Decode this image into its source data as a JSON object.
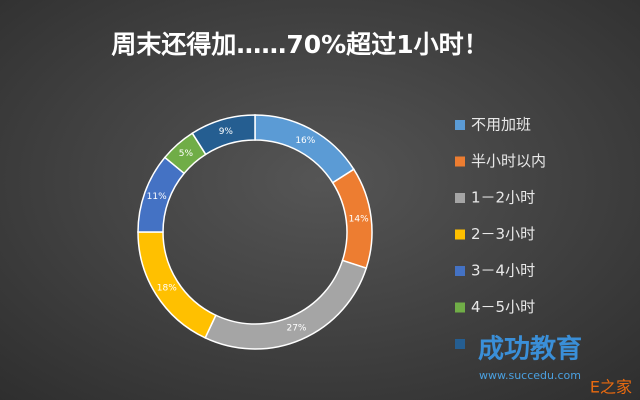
{
  "chart_data": {
    "type": "pie",
    "donut": true,
    "title": "周末还得加……70%超过1小时！",
    "categories": [
      "不用加班",
      "半小时以内",
      "1－2小时",
      "2－3小时",
      "3－4小时",
      "4－5小时",
      null
    ],
    "values": [
      16,
      14,
      27,
      18,
      11,
      5,
      9
    ],
    "value_labels": [
      "16%",
      "14%",
      "27%",
      "18%",
      "11%",
      "5%",
      "9%"
    ],
    "colors": [
      "#5b9bd5",
      "#ed7d31",
      "#a5a5a5",
      "#ffc000",
      "#4472c4",
      "#70ad47",
      "#255e91"
    ],
    "legend": "right"
  },
  "watermark": {
    "name": "成功教育",
    "url": "www.succedu.com",
    "corner": "E之家"
  }
}
